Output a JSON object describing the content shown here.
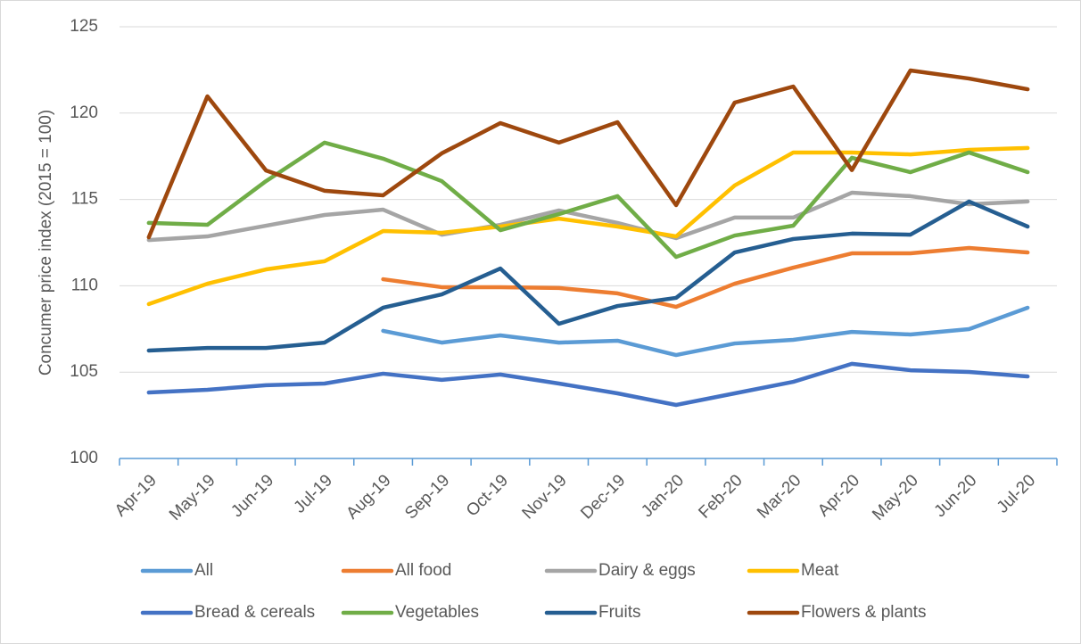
{
  "chart_data": {
    "type": "line",
    "y_label": "Concumer price index (2015 = 100)",
    "categories": [
      "Apr-19",
      "May-19",
      "Jun-19",
      "Jul-19",
      "Aug-19",
      "Sep-19",
      "Oct-19",
      "Nov-19",
      "Dec-19",
      "Jan-20",
      "Feb-20",
      "Mar-20",
      "Apr-20",
      "May-20",
      "Jun-20",
      "Jul-20"
    ],
    "ylim": [
      100,
      125
    ],
    "yticks": [
      100,
      105,
      110,
      115,
      120,
      125
    ],
    "grid": true,
    "legend": "bottom",
    "series": [
      {
        "name": "All",
        "color": "#5b9bd5",
        "values": [
          null,
          null,
          null,
          null,
          107.39,
          106.71,
          107.13,
          106.71,
          106.82,
          105.99,
          106.66,
          106.87,
          107.33,
          107.18,
          107.49,
          108.73
        ]
      },
      {
        "name": "All food",
        "color": "#ed7d31",
        "values": [
          null,
          null,
          null,
          null,
          110.38,
          109.92,
          109.92,
          109.87,
          109.56,
          108.78,
          110.12,
          111.05,
          111.88,
          111.88,
          112.19,
          111.93
        ]
      },
      {
        "name": "Dairy & eggs",
        "color": "#a5a5a5",
        "values": [
          112.65,
          112.86,
          113.48,
          114.1,
          114.41,
          112.96,
          113.53,
          114.36,
          113.64,
          112.76,
          113.95,
          113.95,
          115.39,
          115.19,
          114.72,
          114.88
        ]
      },
      {
        "name": "Meat",
        "color": "#ffc000",
        "values": [
          108.94,
          110.12,
          110.95,
          111.42,
          113.17,
          113.07,
          113.43,
          113.89,
          113.43,
          112.86,
          115.81,
          117.72,
          117.72,
          117.61,
          117.87,
          117.98
        ]
      },
      {
        "name": "Bread & cereals",
        "color": "#4472c4",
        "values": [
          103.82,
          103.98,
          104.24,
          104.34,
          104.91,
          104.55,
          104.86,
          104.34,
          103.77,
          103.1,
          103.77,
          104.44,
          105.48,
          105.11,
          105.01,
          104.75
        ]
      },
      {
        "name": "Vegetables",
        "color": "#70ad47",
        "values": [
          113.64,
          113.53,
          116.06,
          118.29,
          117.36,
          116.06,
          113.22,
          114.15,
          115.19,
          111.67,
          112.91,
          113.48,
          117.41,
          116.58,
          117.72,
          116.58
        ]
      },
      {
        "name": "Fruits",
        "color": "#255e91",
        "values": [
          106.25,
          106.4,
          106.4,
          106.71,
          108.73,
          109.5,
          111.0,
          107.8,
          108.83,
          109.3,
          111.93,
          112.71,
          113.02,
          112.96,
          114.88,
          113.43
        ]
      },
      {
        "name": "Flowers & plants",
        "color": "#9e480e",
        "values": [
          112.81,
          120.97,
          116.68,
          115.5,
          115.24,
          117.67,
          119.42,
          118.29,
          119.47,
          114.67,
          120.61,
          121.54,
          116.7,
          122.47,
          122.0,
          121.38
        ]
      }
    ]
  }
}
